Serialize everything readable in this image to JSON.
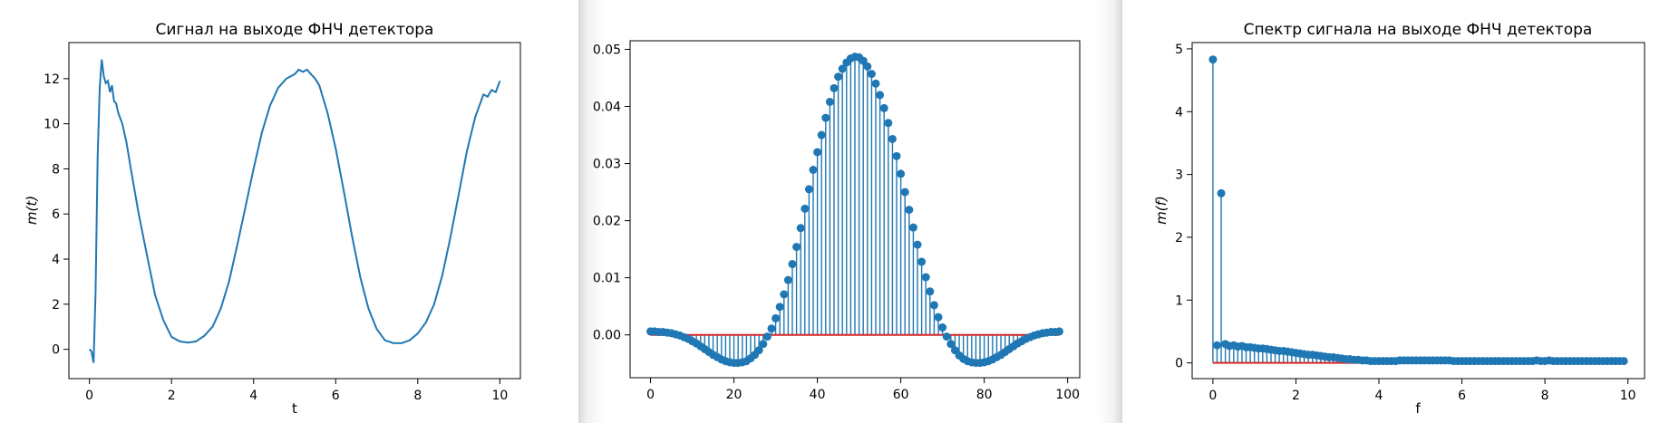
{
  "colors": {
    "series": "#1f77b4",
    "baseline": "#d62728",
    "axis": "#000000"
  },
  "charts": [
    {
      "id": "time",
      "type": "line",
      "title": "Сигнал на выходе ФНЧ детектора",
      "xlabel": "t",
      "ylabel": "m(t)",
      "xlim": [
        -0.5,
        10.5
      ],
      "ylim": [
        -1.3,
        13.6
      ],
      "xticks": [
        0,
        2,
        4,
        6,
        8,
        10
      ],
      "yticks": [
        0,
        2,
        4,
        6,
        8,
        10,
        12
      ],
      "tick_labels_x": [
        "0",
        "2",
        "4",
        "6",
        "8",
        "10"
      ],
      "tick_labels_y": [
        "0",
        "2",
        "4",
        "6",
        "8",
        "10",
        "12"
      ]
    },
    {
      "id": "impulse",
      "type": "stem",
      "title": "",
      "xlabel": "",
      "ylabel": "",
      "xlim": [
        -4.9,
        102.9
      ],
      "ylim": [
        -0.0075,
        0.0515
      ],
      "xticks": [
        0,
        20,
        40,
        60,
        80,
        100
      ],
      "yticks": [
        0,
        0.01,
        0.02,
        0.03,
        0.04,
        0.05
      ],
      "tick_labels_x": [
        "0",
        "20",
        "40",
        "60",
        "80",
        "100"
      ],
      "tick_labels_y": [
        "0.00",
        "0.01",
        "0.02",
        "0.03",
        "0.04",
        "0.05"
      ]
    },
    {
      "id": "spectrum",
      "type": "stem",
      "title": "Спектр сигнала на выходе ФНЧ детектора",
      "xlabel": "f",
      "ylabel": "m(f)",
      "xlim": [
        -0.5,
        10.4
      ],
      "ylim": [
        -0.25,
        5.1
      ],
      "xticks": [
        0,
        2,
        4,
        6,
        8,
        10
      ],
      "yticks": [
        0,
        1,
        2,
        3,
        4,
        5
      ],
      "tick_labels_x": [
        "0",
        "2",
        "4",
        "6",
        "8",
        "10"
      ],
      "tick_labels_y": [
        "0",
        "1",
        "2",
        "3",
        "4",
        "5"
      ]
    }
  ],
  "chart_data": [
    {
      "type": "line",
      "title": "Сигнал на выходе ФНЧ детектора",
      "xlabel": "t",
      "ylabel": "m(t)",
      "xlim": [
        -0.5,
        10.5
      ],
      "ylim": [
        -1.3,
        13.6
      ],
      "series": [
        {
          "x": [
            0,
            0.05,
            0.1,
            0.15,
            0.2,
            0.25,
            0.3,
            0.35,
            0.4,
            0.45,
            0.5,
            0.55,
            0.6,
            0.65,
            0.7,
            0.8,
            0.9,
            1.0,
            1.2,
            1.4,
            1.6,
            1.8,
            2.0,
            2.2,
            2.4,
            2.6,
            2.8,
            3.0,
            3.2,
            3.4,
            3.6,
            3.8,
            4.0,
            4.2,
            4.4,
            4.6,
            4.8,
            5.0,
            5.1,
            5.2,
            5.3,
            5.4,
            5.5,
            5.6,
            5.8,
            6.0,
            6.2,
            6.4,
            6.6,
            6.8,
            7.0,
            7.2,
            7.4,
            7.6,
            7.8,
            8.0,
            8.2,
            8.4,
            8.6,
            8.8,
            9.0,
            9.2,
            9.4,
            9.6,
            9.7,
            9.8,
            9.9,
            10.0
          ],
          "y": [
            0,
            -0.1,
            -0.6,
            2.5,
            8.5,
            11.6,
            12.85,
            12.1,
            11.8,
            11.9,
            11.4,
            11.7,
            11.0,
            10.9,
            10.5,
            10.0,
            9.2,
            8.1,
            6.0,
            4.2,
            2.4,
            1.3,
            0.55,
            0.35,
            0.3,
            0.35,
            0.6,
            1.0,
            1.8,
            3.0,
            4.6,
            6.3,
            8.0,
            9.6,
            10.8,
            11.6,
            12.0,
            12.2,
            12.4,
            12.3,
            12.4,
            12.2,
            12.0,
            11.7,
            10.5,
            8.9,
            7.0,
            5.0,
            3.2,
            1.8,
            0.9,
            0.4,
            0.28,
            0.27,
            0.4,
            0.7,
            1.2,
            2.0,
            3.3,
            5.0,
            6.9,
            8.8,
            10.3,
            11.3,
            11.2,
            11.5,
            11.4,
            11.9
          ]
        }
      ]
    },
    {
      "type": "stem",
      "title": "",
      "xlim": [
        -4.9,
        102.9
      ],
      "ylim": [
        -0.0075,
        0.0515
      ],
      "baseline": 0,
      "series": [
        {
          "x": [
            0,
            1,
            2,
            3,
            4,
            5,
            6,
            7,
            8,
            9,
            10,
            11,
            12,
            13,
            14,
            15,
            16,
            17,
            18,
            19,
            20,
            21,
            22,
            23,
            24,
            25,
            26,
            27,
            28,
            29,
            30,
            31,
            32,
            33,
            34,
            35,
            36,
            37,
            38,
            39,
            40,
            41,
            42,
            43,
            44,
            45,
            46,
            47,
            48,
            49,
            50,
            51,
            52,
            53,
            54,
            55,
            56,
            57,
            58,
            59,
            60,
            61,
            62,
            63,
            64,
            65,
            66,
            67,
            68,
            69,
            70,
            71,
            72,
            73,
            74,
            75,
            76,
            77,
            78,
            79,
            80,
            81,
            82,
            83,
            84,
            85,
            86,
            87,
            88,
            89,
            90,
            91,
            92,
            93,
            94,
            95,
            96,
            97,
            98
          ],
          "y": [
            0.0006,
            0.0006,
            0.0005,
            0.0005,
            0.0004,
            0.0003,
            0.0001,
            -0.0001,
            -0.0004,
            -0.0007,
            -0.0011,
            -0.0015,
            -0.002,
            -0.0025,
            -0.003,
            -0.0035,
            -0.0039,
            -0.0043,
            -0.0046,
            -0.0048,
            -0.0049,
            -0.0049,
            -0.0048,
            -0.0046,
            -0.0041,
            -0.0035,
            -0.0027,
            -0.0016,
            -0.0003,
            0.0011,
            0.0029,
            0.0049,
            0.0071,
            0.0096,
            0.0124,
            0.0154,
            0.0187,
            0.0221,
            0.0255,
            0.0289,
            0.032,
            0.035,
            0.038,
            0.0408,
            0.0432,
            0.0452,
            0.0466,
            0.0477,
            0.0484,
            0.0487,
            0.0486,
            0.048,
            0.047,
            0.0457,
            0.044,
            0.042,
            0.0397,
            0.0371,
            0.0343,
            0.0313,
            0.0282,
            0.025,
            0.0219,
            0.0188,
            0.0158,
            0.0128,
            0.0101,
            0.0076,
            0.0052,
            0.0031,
            0.0013,
            -0.0003,
            -0.0016,
            -0.0027,
            -0.0036,
            -0.0042,
            -0.0046,
            -0.0048,
            -0.0049,
            -0.0049,
            -0.0048,
            -0.0046,
            -0.0043,
            -0.0039,
            -0.0035,
            -0.003,
            -0.0025,
            -0.002,
            -0.0015,
            -0.0011,
            -0.0007,
            -0.0004,
            -0.0001,
            0.0001,
            0.0003,
            0.0004,
            0.0005,
            0.0005,
            0.0006
          ]
        }
      ]
    },
    {
      "type": "stem",
      "title": "Спектр сигнала на выходе ФНЧ детектора",
      "xlabel": "f",
      "ylabel": "m(f)",
      "xlim": [
        -0.5,
        10.4
      ],
      "ylim": [
        -0.25,
        5.1
      ],
      "baseline": 0,
      "series": [
        {
          "x": [
            0,
            0.1,
            0.2,
            0.3,
            0.4,
            0.5,
            0.6,
            0.7,
            0.8,
            0.9,
            1.0,
            1.1,
            1.2,
            1.3,
            1.4,
            1.5,
            1.6,
            1.7,
            1.8,
            1.9,
            2.0,
            2.1,
            2.2,
            2.3,
            2.4,
            2.5,
            2.6,
            2.7,
            2.8,
            2.9,
            3.0,
            3.1,
            3.2,
            3.3,
            3.4,
            3.5,
            3.6,
            3.7,
            3.8,
            3.9,
            4.0,
            4.1,
            4.2,
            4.3,
            4.4,
            4.5,
            4.6,
            4.7,
            4.8,
            4.9,
            5.0,
            5.1,
            5.2,
            5.3,
            5.4,
            5.5,
            5.6,
            5.7,
            5.8,
            5.9,
            6.0,
            6.1,
            6.2,
            6.3,
            6.4,
            6.5,
            6.6,
            6.7,
            6.8,
            6.9,
            7.0,
            7.1,
            7.2,
            7.3,
            7.4,
            7.5,
            7.6,
            7.7,
            7.8,
            7.9,
            8.0,
            8.1,
            8.2,
            8.3,
            8.4,
            8.5,
            8.6,
            8.7,
            8.8,
            8.9,
            9.0,
            9.1,
            9.2,
            9.3,
            9.4,
            9.5,
            9.6,
            9.7,
            9.8,
            9.9
          ],
          "y": [
            4.83,
            0.28,
            2.7,
            0.3,
            0.27,
            0.28,
            0.26,
            0.27,
            0.25,
            0.25,
            0.24,
            0.23,
            0.23,
            0.22,
            0.21,
            0.2,
            0.19,
            0.19,
            0.18,
            0.17,
            0.16,
            0.15,
            0.14,
            0.13,
            0.13,
            0.12,
            0.11,
            0.1,
            0.09,
            0.09,
            0.08,
            0.07,
            0.06,
            0.06,
            0.05,
            0.05,
            0.04,
            0.04,
            0.03,
            0.03,
            0.03,
            0.03,
            0.03,
            0.03,
            0.03,
            0.04,
            0.04,
            0.04,
            0.04,
            0.04,
            0.04,
            0.04,
            0.04,
            0.04,
            0.04,
            0.04,
            0.04,
            0.04,
            0.03,
            0.03,
            0.03,
            0.03,
            0.03,
            0.03,
            0.03,
            0.03,
            0.03,
            0.03,
            0.03,
            0.03,
            0.03,
            0.03,
            0.03,
            0.03,
            0.03,
            0.03,
            0.03,
            0.03,
            0.04,
            0.03,
            0.03,
            0.04,
            0.03,
            0.03,
            0.03,
            0.03,
            0.03,
            0.03,
            0.03,
            0.03,
            0.03,
            0.03,
            0.03,
            0.03,
            0.03,
            0.03,
            0.03,
            0.03,
            0.03,
            0.03
          ]
        }
      ]
    }
  ]
}
